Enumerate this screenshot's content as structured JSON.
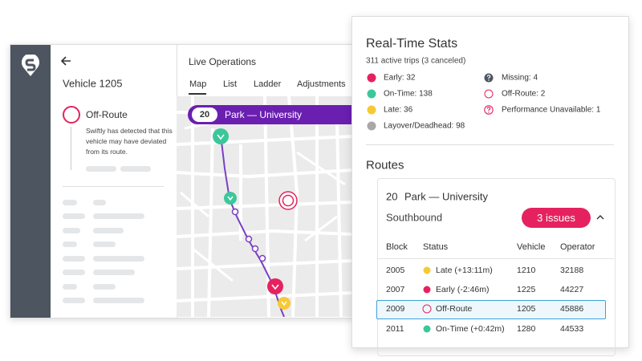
{
  "vehicle_panel": {
    "title": "Vehicle 1205",
    "status": "Off-Route",
    "message": "Swiftly has detected that this vehicle may have deviated from its route."
  },
  "live_operations": {
    "title": "Live Operations",
    "tabs": [
      "Map",
      "List",
      "Ladder",
      "Adjustments"
    ],
    "route_banner": {
      "number": "20",
      "name": "Park — University"
    }
  },
  "stats_card": {
    "title": "Real-Time Stats",
    "summary": "311 active trips (3 canceled)",
    "stats": [
      "Early: 32",
      "On-Time: 138",
      "Late: 36",
      "Layover/Deadhead: 98",
      "Missing: 4",
      "Off-Route: 2",
      "Performance Unavailable: 1"
    ]
  },
  "routes": {
    "title": "Routes",
    "route_number": "20",
    "route_name": "Park — University",
    "direction": "Southbound",
    "issues": "3 issues",
    "table": {
      "headers": [
        "Block",
        "Status",
        "Vehicle",
        "Operator"
      ],
      "rows": [
        [
          "2005",
          "Late (+13:11m)",
          "1210",
          "32188"
        ],
        [
          "2007",
          "Early (-2:46m)",
          "1225",
          "44227"
        ],
        [
          "2009",
          "Off-Route",
          "1205",
          "45886"
        ],
        [
          "2011",
          "On-Time (+0:42m)",
          "1280",
          "44533"
        ]
      ]
    }
  }
}
